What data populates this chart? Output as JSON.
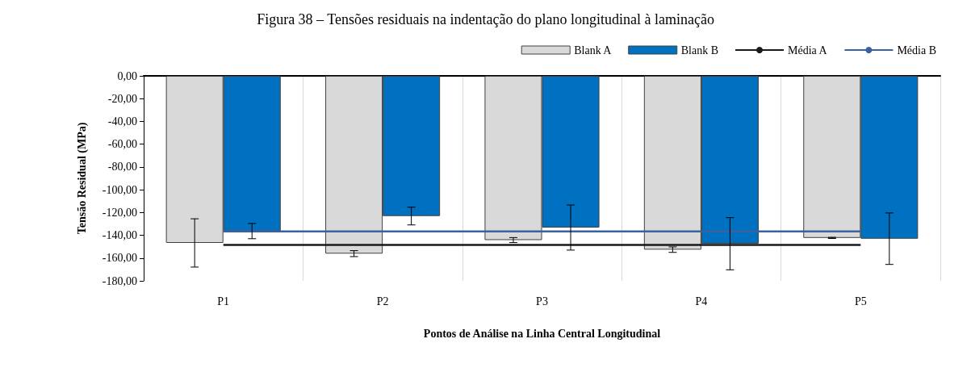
{
  "chart_data": {
    "type": "bar",
    "title": "Figura 38 – Tensões residuais na indentação do plano longitudinal à laminação",
    "xlabel": "Pontos de Análise na Linha Central Longitudinal",
    "ylabel": "Tensão Residual (MPa)",
    "categories": [
      "P1",
      "P2",
      "P3",
      "P4",
      "P5"
    ],
    "series": [
      {
        "name": "Blank A",
        "color": "#d9d9d9",
        "values": [
          -146.7,
          -156.1,
          -144.2,
          -152.6,
          -142.3
        ],
        "errors": [
          21.2,
          2.6,
          2.2,
          2.4,
          0.5
        ]
      },
      {
        "name": "Blank B",
        "color": "#0070c0",
        "values": [
          -136.3,
          -123.1,
          -133.2,
          -147.4,
          -143.0
        ],
        "errors": [
          6.7,
          7.8,
          19.8,
          22.9,
          22.6
        ]
      },
      {
        "name": "Média A",
        "type": "line",
        "color": "#1a1a1a",
        "values": [
          -148.4,
          -148.4,
          -148.4,
          -148.4,
          -148.4
        ]
      },
      {
        "name": "Média B",
        "type": "line",
        "color": "#3a62a0",
        "values": [
          -136.6,
          -136.6,
          -136.6,
          -136.6,
          -136.6
        ]
      }
    ],
    "ylim": [
      -180,
      0
    ],
    "yticks": [
      {
        "value": -180,
        "label": "-180,00"
      },
      {
        "value": -160,
        "label": "-160,00"
      },
      {
        "value": -140,
        "label": "-140,00"
      },
      {
        "value": -120,
        "label": "-120,00"
      },
      {
        "value": -100,
        "label": "-100,00"
      },
      {
        "value": -80,
        "label": "-80,00"
      },
      {
        "value": -60,
        "label": "-60,00"
      },
      {
        "value": -40,
        "label": "-40,00"
      },
      {
        "value": -20,
        "label": "-20,00"
      },
      {
        "value": 0,
        "label": "0,00"
      }
    ],
    "grid": "x",
    "legend": "top right",
    "marker": "none"
  }
}
